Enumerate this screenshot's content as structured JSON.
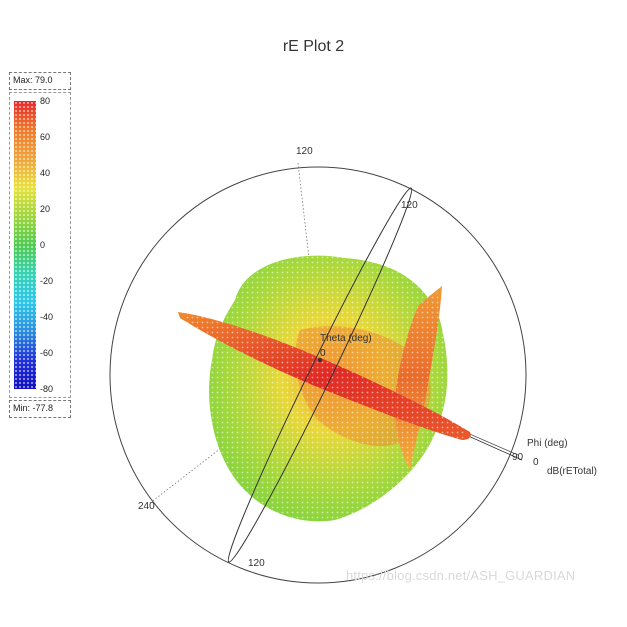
{
  "title": "rE Plot 2",
  "legend": {
    "max_label": "Max: 79.0",
    "min_label": "Min: -77.8",
    "ticks": [
      "80",
      "60",
      "40",
      "20",
      "0",
      "-20",
      "-40",
      "-60",
      "-80"
    ],
    "colors": [
      "#e8262b",
      "#f07a2a",
      "#f1a33a",
      "#e8e23a",
      "#9ed63a",
      "#4ecb4f",
      "#35d3b4",
      "#2bc7ee",
      "#2a8ee0",
      "#2030d8",
      "#1010c0"
    ]
  },
  "axes": {
    "theta_label": "Theta (deg)",
    "theta_zero": "0",
    "phi_label": "Phi (deg)",
    "phi_zero": "0",
    "phi_90": "90",
    "quantity_label": "dB(rETotal)",
    "ticks": [
      "120",
      "120",
      "240",
      "120"
    ]
  },
  "watermark": "https://blog.csdn.net/ASH_GUARDIAN",
  "chart_data": {
    "type": "3d-polar-radiation-pattern",
    "title": "rE Plot 2",
    "quantity": "dB(rETotal)",
    "max": 79.0,
    "min": -77.8,
    "colorbar_range": [
      -80,
      80
    ],
    "colorbar_ticks": [
      80,
      60,
      40,
      20,
      0,
      -20,
      -40,
      -60,
      -80
    ],
    "axes": [
      "Theta (deg)",
      "Phi (deg)"
    ],
    "polar_tick_labels": [
      "120",
      "120",
      "240",
      "120"
    ]
  }
}
